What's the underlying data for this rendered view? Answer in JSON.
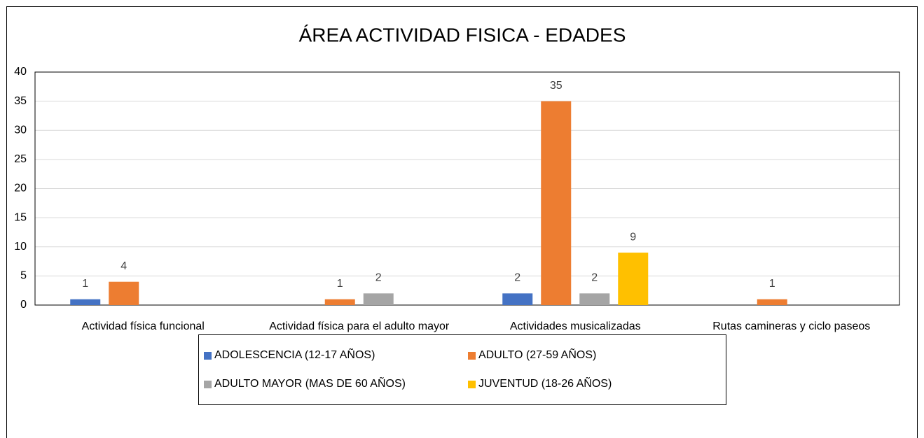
{
  "chart_data": {
    "type": "bar",
    "title": "ÁREA ACTIVIDAD FISICA - EDADES",
    "categories": [
      "Actividad física funcional",
      "Actividad física para el adulto mayor",
      "Actividades musicalizadas",
      "Rutas camineras y ciclo paseos"
    ],
    "series": [
      {
        "name": "ADOLESCENCIA (12-17 AÑOS)",
        "color": "#4472c4",
        "values": [
          1,
          null,
          2,
          null
        ]
      },
      {
        "name": "ADULTO (27-59 AÑOS)",
        "color": "#ed7d31",
        "values": [
          4,
          1,
          35,
          1
        ]
      },
      {
        "name": "ADULTO MAYOR (MAS DE 60 AÑOS)",
        "color": "#a5a5a5",
        "values": [
          null,
          2,
          2,
          null
        ]
      },
      {
        "name": "JUVENTUD (18-26 AÑOS)",
        "color": "#ffc000",
        "values": [
          null,
          null,
          9,
          null
        ]
      }
    ],
    "ylim": [
      0,
      40
    ],
    "yticks": [
      0,
      5,
      10,
      15,
      20,
      25,
      30,
      35,
      40
    ],
    "grid": true,
    "legend": "bottom"
  }
}
